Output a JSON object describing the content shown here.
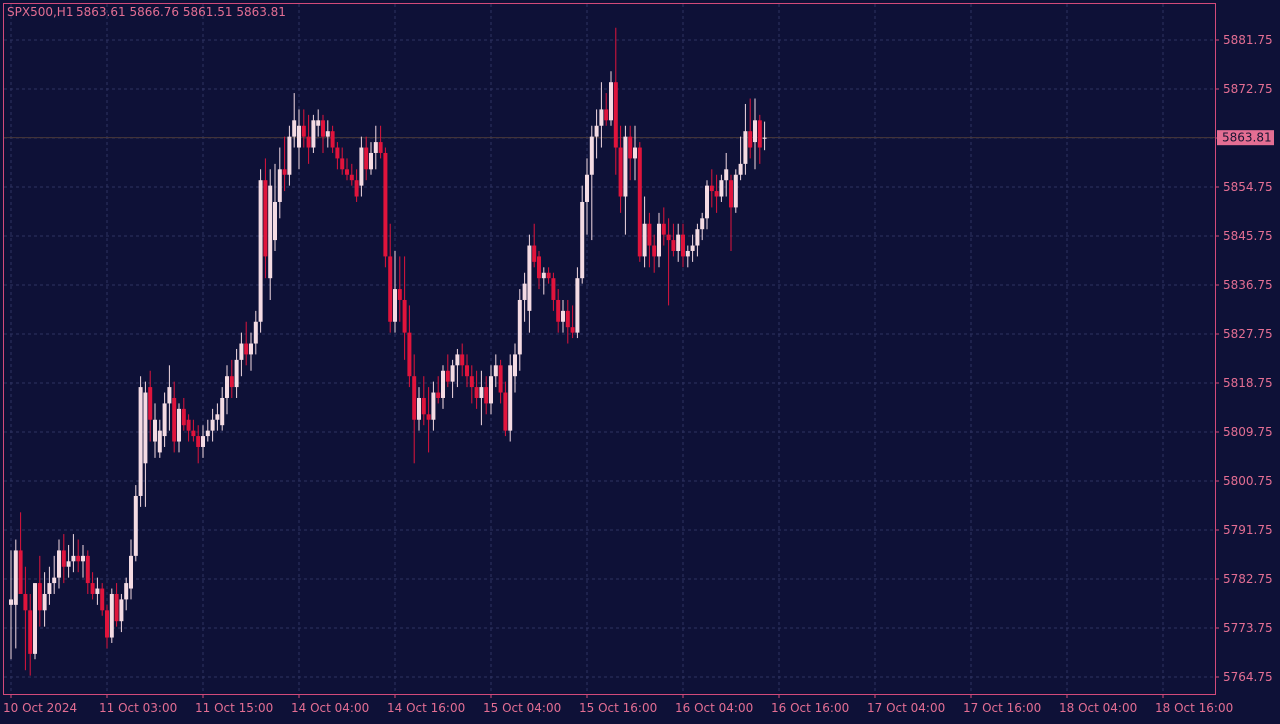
{
  "header": {
    "symbol_tf": "SPX500,H1",
    "ohlc": "5863.61 5866.76 5861.51 5863.81"
  },
  "current_price_label": "5863.81",
  "colors": {
    "background": "#0e1137",
    "frame": "#d24a7a",
    "grid": "#2e3360",
    "text": "#e46e93",
    "bull": "#f4dbe3",
    "bear": "#e0143c",
    "price_badge": "#e46e93"
  },
  "chart_data": {
    "type": "candlestick",
    "title": "SPX500,H1",
    "ylim": [
      5760,
      5886
    ],
    "y_ticks": [
      "5881.75",
      "5872.75",
      "5863.75",
      "5854.75",
      "5845.75",
      "5836.75",
      "5827.75",
      "5818.75",
      "5809.75",
      "5800.75",
      "5791.75",
      "5782.75",
      "5773.75",
      "5764.75"
    ],
    "x_ticks": [
      {
        "label": "10 Oct 2024",
        "bar": 0
      },
      {
        "label": "11 Oct 03:00",
        "bar": 20
      },
      {
        "label": "11 Oct 15:00",
        "bar": 40
      },
      {
        "label": "14 Oct 04:00",
        "bar": 60
      },
      {
        "label": "14 Oct 16:00",
        "bar": 80
      },
      {
        "label": "15 Oct 04:00",
        "bar": 100
      },
      {
        "label": "15 Oct 16:00",
        "bar": 120
      },
      {
        "label": "16 Oct 04:00",
        "bar": 140
      },
      {
        "label": "16 Oct 16:00",
        "bar": 160
      },
      {
        "label": "17 Oct 04:00",
        "bar": 180
      },
      {
        "label": "17 Oct 16:00",
        "bar": 200
      },
      {
        "label": "18 Oct 04:00",
        "bar": 220
      },
      {
        "label": "18 Oct 16:00",
        "bar": 240
      }
    ],
    "grid": true,
    "current_price": 5863.81,
    "candles": [
      [
        5778,
        5788,
        5768,
        5779
      ],
      [
        5778,
        5790,
        5770,
        5788
      ],
      [
        5788,
        5795,
        5781,
        5780
      ],
      [
        5780,
        5785,
        5766,
        5777
      ],
      [
        5777,
        5780,
        5765,
        5769
      ],
      [
        5769,
        5782,
        5768,
        5782
      ],
      [
        5782,
        5787,
        5774,
        5777
      ],
      [
        5777,
        5784,
        5774,
        5780
      ],
      [
        5780,
        5785,
        5778,
        5782
      ],
      [
        5782,
        5787,
        5780,
        5783
      ],
      [
        5783,
        5790,
        5781,
        5788
      ],
      [
        5788,
        5791,
        5782,
        5785
      ],
      [
        5785,
        5789,
        5783,
        5786
      ],
      [
        5786,
        5791,
        5784,
        5787
      ],
      [
        5787,
        5790,
        5784,
        5786
      ],
      [
        5786,
        5789,
        5783,
        5787
      ],
      [
        5787,
        5788,
        5780,
        5782
      ],
      [
        5782,
        5784,
        5779,
        5780
      ],
      [
        5780,
        5783,
        5778,
        5781
      ],
      [
        5781,
        5782,
        5776,
        5777
      ],
      [
        5777,
        5778,
        5770,
        5772
      ],
      [
        5772,
        5781,
        5771,
        5780
      ],
      [
        5780,
        5782,
        5774,
        5775
      ],
      [
        5775,
        5780,
        5773,
        5779
      ],
      [
        5779,
        5783,
        5777,
        5782
      ],
      [
        5781,
        5790,
        5779,
        5787
      ],
      [
        5787,
        5800,
        5786,
        5798
      ],
      [
        5798,
        5820,
        5796,
        5818
      ],
      [
        5804,
        5819,
        5796,
        5817
      ],
      [
        5818,
        5821,
        5808,
        5812
      ],
      [
        5808,
        5815,
        5805,
        5812
      ],
      [
        5806,
        5812,
        5805,
        5810
      ],
      [
        5809,
        5817,
        5807,
        5815
      ],
      [
        5815,
        5822,
        5810,
        5818
      ],
      [
        5816,
        5819,
        5806,
        5808
      ],
      [
        5808,
        5815,
        5806,
        5814
      ],
      [
        5814,
        5816,
        5810,
        5811
      ],
      [
        5812,
        5813,
        5808,
        5810
      ],
      [
        5810,
        5812,
        5808,
        5809
      ],
      [
        5809,
        5811,
        5804,
        5807
      ],
      [
        5807,
        5811,
        5805,
        5809
      ],
      [
        5809,
        5812,
        5808,
        5810
      ],
      [
        5810,
        5814,
        5808,
        5812
      ],
      [
        5812,
        5815,
        5810,
        5813
      ],
      [
        5811,
        5818,
        5810,
        5816
      ],
      [
        5816,
        5822,
        5813,
        5820
      ],
      [
        5820,
        5823,
        5816,
        5818
      ],
      [
        5818,
        5825,
        5816,
        5823
      ],
      [
        5823,
        5828,
        5820,
        5826
      ],
      [
        5826,
        5830,
        5822,
        5824
      ],
      [
        5824,
        5828,
        5821,
        5826
      ],
      [
        5826,
        5832,
        5824,
        5830
      ],
      [
        5830,
        5858,
        5828,
        5856
      ],
      [
        5856,
        5860,
        5838,
        5842
      ],
      [
        5838,
        5858,
        5834,
        5855
      ],
      [
        5845,
        5859,
        5843,
        5852
      ],
      [
        5852,
        5862,
        5849,
        5858
      ],
      [
        5858,
        5864,
        5854,
        5857
      ],
      [
        5857,
        5866,
        5855,
        5864
      ],
      [
        5864,
        5872,
        5862,
        5867
      ],
      [
        5862,
        5869,
        5858,
        5866
      ],
      [
        5866,
        5869,
        5862,
        5864
      ],
      [
        5864,
        5868,
        5859,
        5862
      ],
      [
        5862,
        5868,
        5861,
        5867
      ],
      [
        5866,
        5869,
        5864,
        5867
      ],
      [
        5867,
        5868,
        5861,
        5864
      ],
      [
        5864,
        5867,
        5862,
        5865
      ],
      [
        5865,
        5866,
        5861,
        5862
      ],
      [
        5862,
        5863,
        5858,
        5860
      ],
      [
        5860,
        5862,
        5857,
        5858
      ],
      [
        5858,
        5860,
        5856,
        5857
      ],
      [
        5857,
        5859,
        5855,
        5856
      ],
      [
        5856,
        5858,
        5852,
        5853
      ],
      [
        5855,
        5864,
        5853,
        5862
      ],
      [
        5862,
        5864,
        5856,
        5858
      ],
      [
        5858,
        5863,
        5857,
        5861
      ],
      [
        5861,
        5866,
        5858,
        5863
      ],
      [
        5863,
        5866,
        5860,
        5861
      ],
      [
        5861,
        5862,
        5840,
        5842
      ],
      [
        5842,
        5848,
        5828,
        5830
      ],
      [
        5830,
        5843,
        5828,
        5836
      ],
      [
        5836,
        5842,
        5830,
        5834
      ],
      [
        5834,
        5842,
        5823,
        5828
      ],
      [
        5828,
        5833,
        5818,
        5820
      ],
      [
        5820,
        5824,
        5804,
        5812
      ],
      [
        5812,
        5818,
        5810,
        5816
      ],
      [
        5816,
        5820,
        5811,
        5813
      ],
      [
        5813,
        5818,
        5806,
        5812
      ],
      [
        5812,
        5819,
        5810,
        5817
      ],
      [
        5817,
        5820,
        5815,
        5816
      ],
      [
        5816,
        5822,
        5814,
        5821
      ],
      [
        5821,
        5824,
        5818,
        5819
      ],
      [
        5819,
        5823,
        5816,
        5822
      ],
      [
        5822,
        5825,
        5818,
        5824
      ],
      [
        5824,
        5826,
        5820,
        5822
      ],
      [
        5822,
        5824,
        5818,
        5820
      ],
      [
        5820,
        5822,
        5815,
        5818
      ],
      [
        5818,
        5821,
        5814,
        5816
      ],
      [
        5816,
        5821,
        5811,
        5818
      ],
      [
        5818,
        5820,
        5813,
        5815
      ],
      [
        5815,
        5822,
        5813,
        5820
      ],
      [
        5820,
        5824,
        5818,
        5822
      ],
      [
        5822,
        5823,
        5815,
        5817
      ],
      [
        5817,
        5819,
        5809,
        5810
      ],
      [
        5810,
        5824,
        5808,
        5822
      ],
      [
        5820,
        5826,
        5817,
        5824
      ],
      [
        5824,
        5836,
        5821,
        5834
      ],
      [
        5834,
        5839,
        5830,
        5837
      ],
      [
        5832,
        5846,
        5828,
        5844
      ],
      [
        5844,
        5848,
        5840,
        5841
      ],
      [
        5842,
        5843,
        5836,
        5838
      ],
      [
        5838,
        5840,
        5835,
        5839
      ],
      [
        5839,
        5840,
        5837,
        5838
      ],
      [
        5838,
        5839,
        5832,
        5834
      ],
      [
        5834,
        5836,
        5828,
        5830
      ],
      [
        5830,
        5834,
        5828,
        5832
      ],
      [
        5832,
        5834,
        5826,
        5829
      ],
      [
        5829,
        5833,
        5827,
        5828
      ],
      [
        5828,
        5840,
        5827,
        5838
      ],
      [
        5838,
        5855,
        5837,
        5852
      ],
      [
        5852,
        5860,
        5846,
        5857
      ],
      [
        5857,
        5866,
        5845,
        5864
      ],
      [
        5864,
        5869,
        5860,
        5866
      ],
      [
        5866,
        5874,
        5862,
        5869
      ],
      [
        5869,
        5872,
        5866,
        5867
      ],
      [
        5867,
        5876,
        5866,
        5874
      ],
      [
        5874,
        5884,
        5857,
        5862
      ],
      [
        5862,
        5866,
        5850,
        5853
      ],
      [
        5853,
        5866,
        5846,
        5864
      ],
      [
        5864,
        5866,
        5856,
        5860
      ],
      [
        5860,
        5866,
        5856,
        5862
      ],
      [
        5862,
        5863,
        5841,
        5842
      ],
      [
        5842,
        5853,
        5840,
        5848
      ],
      [
        5848,
        5850,
        5840,
        5844
      ],
      [
        5844,
        5846,
        5839,
        5842
      ],
      [
        5842,
        5850,
        5840,
        5848
      ],
      [
        5848,
        5851,
        5844,
        5846
      ],
      [
        5846,
        5849,
        5833,
        5845
      ],
      [
        5845,
        5848,
        5842,
        5843
      ],
      [
        5843,
        5848,
        5841,
        5846
      ],
      [
        5846,
        5848,
        5840,
        5842
      ],
      [
        5842,
        5844,
        5840,
        5843
      ],
      [
        5843,
        5846,
        5841,
        5844
      ],
      [
        5844,
        5848,
        5842,
        5847
      ],
      [
        5847,
        5850,
        5845,
        5849
      ],
      [
        5849,
        5856,
        5847,
        5855
      ],
      [
        5855,
        5858,
        5851,
        5854
      ],
      [
        5854,
        5857,
        5850,
        5853
      ],
      [
        5853,
        5857,
        5852,
        5856
      ],
      [
        5856,
        5861,
        5853,
        5858
      ],
      [
        5856,
        5857,
        5843,
        5851
      ],
      [
        5851,
        5858,
        5850,
        5857
      ],
      [
        5857,
        5864,
        5856,
        5859
      ],
      [
        5859,
        5870,
        5857,
        5865
      ],
      [
        5865,
        5871,
        5860,
        5862
      ],
      [
        5863,
        5871,
        5858,
        5867
      ],
      [
        5867,
        5868,
        5859,
        5862
      ],
      [
        5863.61,
        5866.76,
        5861.51,
        5863.81
      ]
    ]
  }
}
